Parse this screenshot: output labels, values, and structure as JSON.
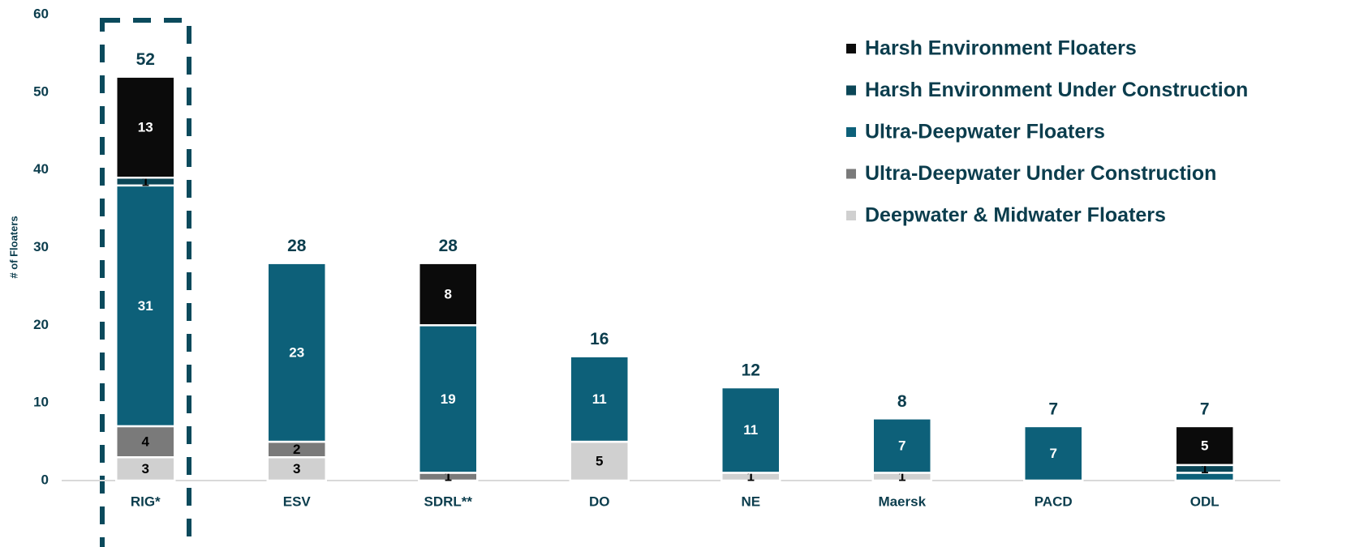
{
  "chart_data": {
    "type": "stacked_bar",
    "y_label": "# of Floaters",
    "categories": [
      "RIG*",
      "ESV",
      "SDRL**",
      "DO",
      "NE",
      "Maersk",
      "PACD",
      "ODL"
    ],
    "series": [
      {
        "name": "Deepwater & Midwater Floaters",
        "color": "#d0d0d0",
        "values": [
          3,
          3,
          0,
          5,
          1,
          1,
          0,
          0
        ],
        "value_labels": [
          "3",
          "3",
          null,
          "5",
          "1",
          "1",
          null,
          null
        ]
      },
      {
        "name": "Ultra-Deepwater Under Construction",
        "color": "#7a7a7a",
        "values": [
          4,
          2,
          1,
          0,
          0,
          0,
          0,
          0
        ],
        "value_labels": [
          "4",
          "2",
          "1",
          null,
          null,
          null,
          null,
          null
        ]
      },
      {
        "name": "Ultra-Deepwater Floaters",
        "color": "#0d6079",
        "values": [
          31,
          23,
          19,
          11,
          11,
          7,
          7,
          1
        ],
        "value_labels": [
          "31",
          "23",
          "19",
          "11",
          "11",
          "7",
          "7",
          null
        ]
      },
      {
        "name": "Harsh Environment Under Construction",
        "color": "#0b4657",
        "values": [
          1,
          0,
          0,
          0,
          0,
          0,
          0,
          1
        ],
        "value_labels": [
          "1",
          null,
          null,
          null,
          null,
          null,
          null,
          "1"
        ]
      },
      {
        "name": "Harsh Environment Floaters",
        "color": "#0b0b0b",
        "values": [
          13,
          0,
          8,
          0,
          0,
          0,
          0,
          5
        ],
        "value_labels": [
          "13",
          null,
          "8",
          null,
          null,
          null,
          null,
          "5"
        ]
      }
    ],
    "totals": [
      52,
      28,
      28,
      16,
      12,
      8,
      7,
      7
    ],
    "ylim": [
      0,
      60
    ],
    "yticks": [
      0,
      10,
      20,
      30,
      40,
      50,
      60
    ],
    "grid": false,
    "legend": "upper right"
  }
}
